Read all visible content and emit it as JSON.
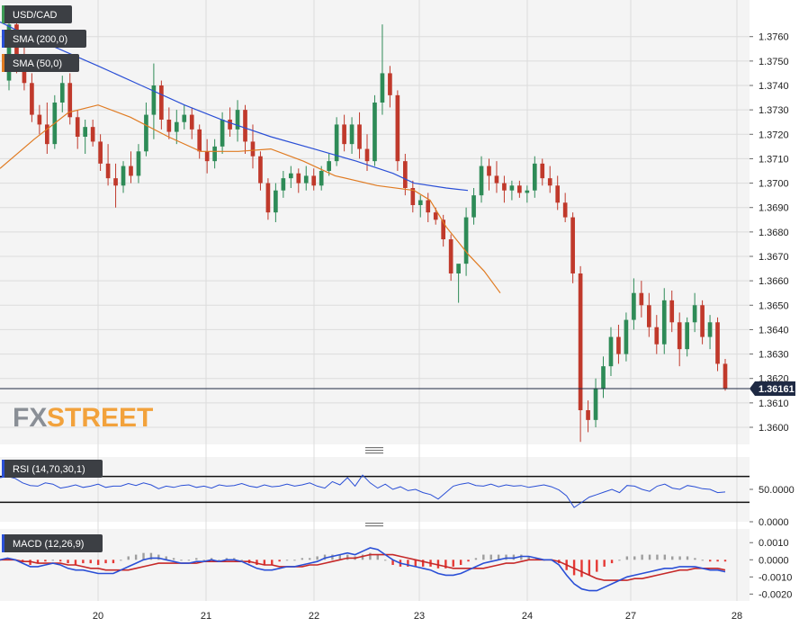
{
  "chart_data": [
    {
      "type": "candlestick",
      "title": "USD/CAD",
      "ylim": [
        1.3593,
        1.3775
      ],
      "yticks": [
        "1.3600",
        "1.3610",
        "1.3620",
        "1.3630",
        "1.3640",
        "1.3650",
        "1.3660",
        "1.3670",
        "1.3680",
        "1.3690",
        "1.3700",
        "1.3710",
        "1.3720",
        "1.3730",
        "1.3740",
        "1.3750",
        "1.3760"
      ],
      "xticks": [
        "20",
        "21",
        "22",
        "23",
        "24",
        "27",
        "28"
      ],
      "grid": true,
      "legend": [
        "SMA (200,0)",
        "SMA (50,0)"
      ],
      "last_price": "1.36161",
      "watermark": {
        "fx": "FX",
        "street": "STREET"
      },
      "series": [
        {
          "name": "SMA (200,0)",
          "color": "#2a4fd6",
          "values": [
            [
              0,
              1.3766
            ],
            [
              0.05,
              1.3765
            ],
            [
              0.2,
              1.3762
            ],
            [
              0.6,
              1.3755
            ],
            [
              1.0,
              1.3748
            ],
            [
              1.4,
              1.374
            ],
            [
              1.8,
              1.3732
            ],
            [
              2.2,
              1.3725
            ],
            [
              2.6,
              1.3719
            ],
            [
              3.0,
              1.3714
            ],
            [
              3.4,
              1.3709
            ],
            [
              3.75,
              1.3704
            ],
            [
              3.95,
              1.37
            ],
            [
              4.25,
              1.3698
            ],
            [
              4.45,
              1.3697
            ]
          ]
        },
        {
          "name": "SMA (50,0)",
          "color": "#e07b22",
          "values": [
            [
              0,
              1.3706
            ],
            [
              0.35,
              1.3718
            ],
            [
              0.7,
              1.3729
            ],
            [
              1.0,
              1.3732
            ],
            [
              1.3,
              1.3727
            ],
            [
              1.65,
              1.3719
            ],
            [
              1.95,
              1.3713
            ],
            [
              2.3,
              1.3713
            ],
            [
              2.6,
              1.3714
            ],
            [
              2.9,
              1.3709
            ],
            [
              3.2,
              1.3703
            ],
            [
              3.6,
              1.3699
            ],
            [
              3.95,
              1.3697
            ],
            [
              4.1,
              1.3693
            ],
            [
              4.25,
              1.3682
            ],
            [
              4.45,
              1.3671
            ],
            [
              4.6,
              1.3664
            ],
            [
              4.75,
              1.3655
            ]
          ]
        }
      ],
      "candles": [
        [
          1.3742,
          1.377,
          1.3738,
          1.3765
        ],
        [
          1.3765,
          1.377,
          1.3745,
          1.3752
        ],
        [
          1.3752,
          1.3756,
          1.3738,
          1.3741
        ],
        [
          1.3741,
          1.3745,
          1.3725,
          1.3728
        ],
        [
          1.3728,
          1.3732,
          1.372,
          1.3724
        ],
        [
          1.3724,
          1.3733,
          1.3712,
          1.3716
        ],
        [
          1.3716,
          1.3736,
          1.3714,
          1.3733
        ],
        [
          1.3733,
          1.3744,
          1.3729,
          1.3741
        ],
        [
          1.3741,
          1.3745,
          1.3724,
          1.3727
        ],
        [
          1.3727,
          1.373,
          1.3714,
          1.3719
        ],
        [
          1.3719,
          1.3726,
          1.3712,
          1.3723
        ],
        [
          1.3723,
          1.3726,
          1.3715,
          1.3717
        ],
        [
          1.3717,
          1.372,
          1.3705,
          1.3708
        ],
        [
          1.3708,
          1.3716,
          1.3699,
          1.3702
        ],
        [
          1.3702,
          1.3708,
          1.369,
          1.3699
        ],
        [
          1.3699,
          1.3709,
          1.3696,
          1.3707
        ],
        [
          1.3707,
          1.3713,
          1.37,
          1.3703
        ],
        [
          1.3703,
          1.3716,
          1.37,
          1.3713
        ],
        [
          1.3713,
          1.3733,
          1.3711,
          1.3728
        ],
        [
          1.3728,
          1.3749,
          1.3718,
          1.374
        ],
        [
          1.374,
          1.3742,
          1.3722,
          1.3726
        ],
        [
          1.3726,
          1.3731,
          1.3718,
          1.3721
        ],
        [
          1.3721,
          1.373,
          1.3716,
          1.3725
        ],
        [
          1.3725,
          1.3732,
          1.3722,
          1.3728
        ],
        [
          1.3728,
          1.3731,
          1.3718,
          1.3722
        ],
        [
          1.3722,
          1.3724,
          1.371,
          1.3713
        ],
        [
          1.3713,
          1.3718,
          1.3704,
          1.3709
        ],
        [
          1.3709,
          1.3718,
          1.3706,
          1.3715
        ],
        [
          1.3715,
          1.3729,
          1.3712,
          1.3726
        ],
        [
          1.3726,
          1.3731,
          1.3719,
          1.3722
        ],
        [
          1.3722,
          1.3734,
          1.3717,
          1.373
        ],
        [
          1.373,
          1.3732,
          1.3712,
          1.3717
        ],
        [
          1.3717,
          1.3724,
          1.3706,
          1.3711
        ],
        [
          1.3711,
          1.3713,
          1.3697,
          1.37
        ],
        [
          1.37,
          1.3702,
          1.3685,
          1.3688
        ],
        [
          1.3688,
          1.37,
          1.3684,
          1.3697
        ],
        [
          1.3697,
          1.3705,
          1.3694,
          1.3702
        ],
        [
          1.3702,
          1.3707,
          1.3698,
          1.3704
        ],
        [
          1.3704,
          1.3706,
          1.3696,
          1.37
        ],
        [
          1.37,
          1.3707,
          1.3697,
          1.3703
        ],
        [
          1.3703,
          1.3706,
          1.3697,
          1.3699
        ],
        [
          1.3699,
          1.3707,
          1.3697,
          1.3705
        ],
        [
          1.3705,
          1.3712,
          1.3703,
          1.3709
        ],
        [
          1.3709,
          1.3727,
          1.3707,
          1.3724
        ],
        [
          1.3724,
          1.3728,
          1.3713,
          1.3716
        ],
        [
          1.3716,
          1.3727,
          1.3712,
          1.3724
        ],
        [
          1.3724,
          1.3729,
          1.371,
          1.3714
        ],
        [
          1.3714,
          1.372,
          1.3705,
          1.3709
        ],
        [
          1.3709,
          1.3736,
          1.3707,
          1.3733
        ],
        [
          1.3733,
          1.3765,
          1.3728,
          1.3745
        ],
        [
          1.3745,
          1.3748,
          1.3731,
          1.3736
        ],
        [
          1.3736,
          1.3738,
          1.3705,
          1.3709
        ],
        [
          1.3709,
          1.3712,
          1.3695,
          1.3698
        ],
        [
          1.3698,
          1.3701,
          1.3688,
          1.3691
        ],
        [
          1.3691,
          1.3695,
          1.3686,
          1.3693
        ],
        [
          1.3693,
          1.3696,
          1.3684,
          1.3688
        ],
        [
          1.3688,
          1.369,
          1.3683,
          1.3685
        ],
        [
          1.3685,
          1.3687,
          1.3674,
          1.3677
        ],
        [
          1.3677,
          1.3679,
          1.366,
          1.3663
        ],
        [
          1.3663,
          1.3666,
          1.3651,
          1.3667
        ],
        [
          1.3667,
          1.369,
          1.3662,
          1.3686
        ],
        [
          1.3686,
          1.3698,
          1.3683,
          1.3695
        ],
        [
          1.3695,
          1.3711,
          1.3692,
          1.3707
        ],
        [
          1.3707,
          1.371,
          1.3697,
          1.3703
        ],
        [
          1.3703,
          1.3709,
          1.3696,
          1.37
        ],
        [
          1.37,
          1.3703,
          1.3692,
          1.3697
        ],
        [
          1.3697,
          1.3701,
          1.3693,
          1.3699
        ],
        [
          1.3699,
          1.3701,
          1.3694,
          1.3696
        ],
        [
          1.3696,
          1.3699,
          1.3692,
          1.3697
        ],
        [
          1.3697,
          1.3711,
          1.3694,
          1.3708
        ],
        [
          1.3708,
          1.371,
          1.3699,
          1.3702
        ],
        [
          1.3702,
          1.3707,
          1.3696,
          1.3699
        ],
        [
          1.3699,
          1.3703,
          1.3689,
          1.3692
        ],
        [
          1.3692,
          1.3696,
          1.3684,
          1.3686
        ],
        [
          1.3686,
          1.3688,
          1.3659,
          1.3663
        ],
        [
          1.3663,
          1.3666,
          1.3594,
          1.3607
        ],
        [
          1.3607,
          1.3611,
          1.3598,
          1.3603
        ],
        [
          1.3603,
          1.362,
          1.36,
          1.3616
        ],
        [
          1.3616,
          1.3629,
          1.3612,
          1.3625
        ],
        [
          1.3625,
          1.3641,
          1.3621,
          1.3637
        ],
        [
          1.3637,
          1.3642,
          1.3626,
          1.363
        ],
        [
          1.363,
          1.3647,
          1.3627,
          1.3644
        ],
        [
          1.3644,
          1.3661,
          1.364,
          1.3655
        ],
        [
          1.3655,
          1.366,
          1.3645,
          1.365
        ],
        [
          1.365,
          1.3655,
          1.3637,
          1.3641
        ],
        [
          1.3641,
          1.3646,
          1.363,
          1.3634
        ],
        [
          1.3634,
          1.3657,
          1.363,
          1.3652
        ],
        [
          1.3652,
          1.3656,
          1.3639,
          1.3643
        ],
        [
          1.3643,
          1.3647,
          1.3625,
          1.3632
        ],
        [
          1.3632,
          1.3645,
          1.3629,
          1.3643
        ],
        [
          1.3643,
          1.3655,
          1.3639,
          1.365
        ],
        [
          1.365,
          1.3652,
          1.3634,
          1.3637
        ],
        [
          1.3637,
          1.3646,
          1.3632,
          1.3643
        ],
        [
          1.3643,
          1.3645,
          1.3623,
          1.3626
        ],
        [
          1.3626,
          1.3628,
          1.3615,
          1.3616
        ]
      ]
    },
    {
      "type": "line",
      "title": "RSI (14,70,30,1)",
      "ylim": [
        0,
        100
      ],
      "yticks": [
        "50.0000",
        "0.0000"
      ],
      "levels": [
        70,
        30
      ],
      "series": [
        {
          "name": "RSI (14,70,30,1)",
          "color": "#2a4fd6",
          "values": [
            68,
            70,
            67,
            60,
            56,
            55,
            60,
            58,
            52,
            54,
            57,
            53,
            55,
            58,
            53,
            55,
            55,
            59,
            56,
            60,
            57,
            51,
            55,
            53,
            56,
            57,
            53,
            55,
            52,
            57,
            55,
            56,
            59,
            55,
            53,
            57,
            54,
            55,
            58,
            55,
            57,
            60,
            55,
            52,
            62,
            57,
            68,
            55,
            72,
            60,
            52,
            58,
            50,
            54,
            48,
            50,
            45,
            42,
            35,
            45,
            55,
            58,
            60,
            56,
            55,
            58,
            54,
            57,
            55,
            56,
            53,
            55,
            57,
            54,
            49,
            40,
            22,
            30,
            38,
            42,
            46,
            50,
            45,
            56,
            55,
            50,
            47,
            55,
            58,
            52,
            50,
            56,
            54,
            51,
            50,
            45,
            46
          ]
        }
      ]
    },
    {
      "type": "bar",
      "title": "MACD (12,26,9)",
      "ylim": [
        -0.0024,
        0.0018
      ],
      "yticks": [
        "0.0010",
        "0.0000",
        "-0.0010",
        "-0.0020"
      ],
      "series": [
        {
          "name": "MACD line",
          "color": "#2a4fd6",
          "values": [
            0.0,
            0.0001,
            0.0,
            -0.0002,
            -0.0004,
            -0.0004,
            -0.0003,
            -0.0002,
            -0.0003,
            -0.0005,
            -0.0006,
            -0.0006,
            -0.0007,
            -0.0008,
            -0.0008,
            -0.0008,
            -0.0006,
            -0.0004,
            -0.0002,
            0.0,
            0.0001,
            0.0001,
            0.0,
            -0.0001,
            -0.0002,
            -0.0002,
            -0.0001,
            -0.0001,
            0.0,
            -0.0001,
            0.0,
            0.0,
            -0.0001,
            -0.0003,
            -0.0005,
            -0.0006,
            -0.0006,
            -0.0005,
            -0.0004,
            -0.0004,
            -0.0003,
            -0.0002,
            -0.0001,
            0.0001,
            0.0002,
            0.0003,
            0.0004,
            0.0003,
            0.0005,
            0.0007,
            0.0006,
            0.0003,
            0.0,
            -0.0002,
            -0.0003,
            -0.0004,
            -0.0005,
            -0.0006,
            -0.0008,
            -0.0009,
            -0.0009,
            -0.0008,
            -0.0006,
            -0.0004,
            -0.0002,
            -0.0001,
            0.0,
            0.0001,
            0.0001,
            0.0002,
            0.0002,
            0.0001,
            0.0,
            0.0,
            -0.0003,
            -0.0009,
            -0.0014,
            -0.0017,
            -0.0018,
            -0.0018,
            -0.0016,
            -0.0014,
            -0.0012,
            -0.001,
            -0.0009,
            -0.0008,
            -0.0007,
            -0.0006,
            -0.0005,
            -0.0005,
            -0.0004,
            -0.0004,
            -0.0004,
            -0.0005,
            -0.0006,
            -0.0006,
            -0.0007
          ]
        },
        {
          "name": "Signal line",
          "color": "#c62828",
          "values": [
            0.0,
            0.0,
            0.0,
            -0.0001,
            -0.0001,
            -0.0002,
            -0.0002,
            -0.0002,
            -0.0002,
            -0.0003,
            -0.0003,
            -0.0004,
            -0.0005,
            -0.0005,
            -0.0006,
            -0.0006,
            -0.0006,
            -0.0006,
            -0.0005,
            -0.0004,
            -0.0003,
            -0.0002,
            -0.0002,
            -0.0002,
            -0.0002,
            -0.0002,
            -0.0002,
            -0.0001,
            -0.0001,
            -0.0001,
            -0.0001,
            -0.0001,
            -0.0001,
            -0.0001,
            -0.0002,
            -0.0003,
            -0.0003,
            -0.0004,
            -0.0004,
            -0.0004,
            -0.0004,
            -0.0003,
            -0.0003,
            -0.0002,
            -0.0001,
            0.0,
            0.0001,
            0.0001,
            0.0002,
            0.0003,
            0.0003,
            0.0003,
            0.0003,
            0.0002,
            0.0001,
            0.0,
            -0.0001,
            -0.0002,
            -0.0003,
            -0.0004,
            -0.0005,
            -0.0005,
            -0.0005,
            -0.0005,
            -0.0005,
            -0.0004,
            -0.0003,
            -0.0002,
            -0.0002,
            -0.0001,
            0.0,
            0.0,
            0.0,
            0.0,
            -0.0001,
            -0.0003,
            -0.0005,
            -0.0007,
            -0.0009,
            -0.0011,
            -0.0012,
            -0.0012,
            -0.0012,
            -0.0012,
            -0.0011,
            -0.0011,
            -0.001,
            -0.0009,
            -0.0008,
            -0.0007,
            -0.0006,
            -0.0006,
            -0.0005,
            -0.0005,
            -0.0005,
            -0.0005,
            -0.0006
          ]
        }
      ]
    }
  ]
}
